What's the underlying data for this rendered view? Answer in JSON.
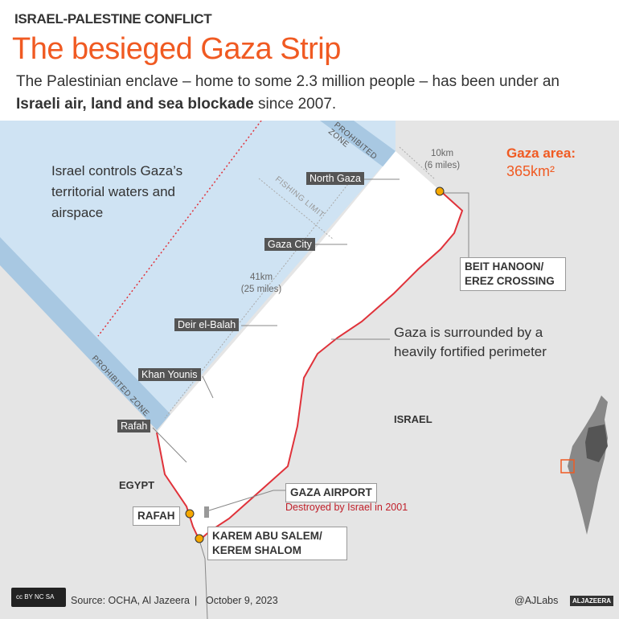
{
  "header": {
    "kicker": "ISRAEL-PALESTINE CONFLICT",
    "title": "The besieged Gaza Strip",
    "subtitle_pre": "The Palestinian enclave – home to some 2.3 million people – has been under an ",
    "subtitle_bold": "Israeli air, land and sea blockade",
    "subtitle_post": " since 2007."
  },
  "map": {
    "sea_note": "Israel controls Gaza’s territorial waters and airspace",
    "perimeter_note": "Gaza is surrounded by a heavily fortified perimeter",
    "area_label": "Gaza area:",
    "area_value": "365km²",
    "width_km": "10km",
    "width_mi": "(6 miles)",
    "length_km": "41km",
    "length_mi": "(25 miles)",
    "fishing_limit": "FISHING LIMIT",
    "prohibited_zone": "PROHIBITED ZONE",
    "cities": [
      "North Gaza",
      "Gaza City",
      "Deir el-Balah",
      "Khan Younis",
      "Rafah"
    ],
    "countries": {
      "israel": "ISRAEL",
      "egypt": "EGYPT"
    },
    "crossings": {
      "beit_hanoon": "BEIT HANOON/ EREZ CROSSING",
      "rafah": "RAFAH",
      "karem": "KAREM ABU SALEM/ KEREM SHALOM"
    },
    "airport": {
      "name": "GAZA AIRPORT",
      "note": "Destroyed by Israel in 2001"
    },
    "colors": {
      "sea": "#cfe3f3",
      "zone": "#a8c8e2",
      "land": "#e5e5e5",
      "gaza": "#ffffff",
      "border": "#e0323a",
      "accent": "#f05a22"
    }
  },
  "footer": {
    "source": "Source: OCHA, Al Jazeera",
    "date": "October 9, 2023",
    "handle": "@AJLabs",
    "brand": "ALJAZEERA",
    "license": "cc BY NC SA"
  }
}
